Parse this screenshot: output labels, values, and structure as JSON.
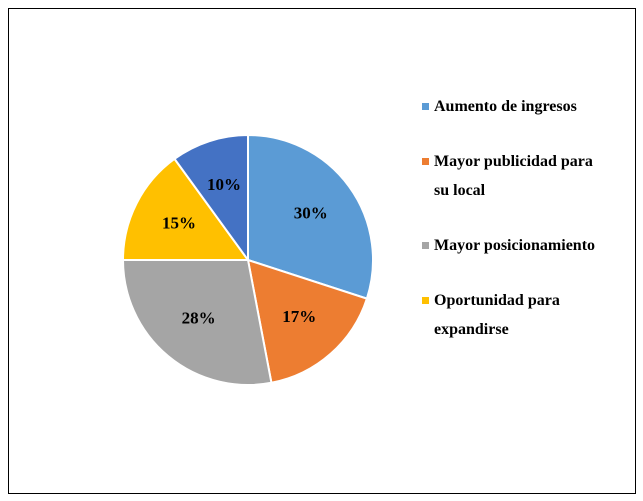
{
  "chart_data": {
    "type": "pie",
    "categories": [
      "Aumento de ingresos",
      "Mayor publicidad para su local",
      "Mayor posicionamiento",
      "Oportunidad para expandirse",
      null
    ],
    "values": [
      30,
      17,
      28,
      15,
      10
    ],
    "value_labels": [
      "30%",
      "17%",
      "28%",
      "15%",
      "10%"
    ],
    "colors": [
      "#5b9bd5",
      "#ed7d31",
      "#a5a5a5",
      "#ffc000",
      "#4472c4"
    ],
    "legend": "right"
  }
}
